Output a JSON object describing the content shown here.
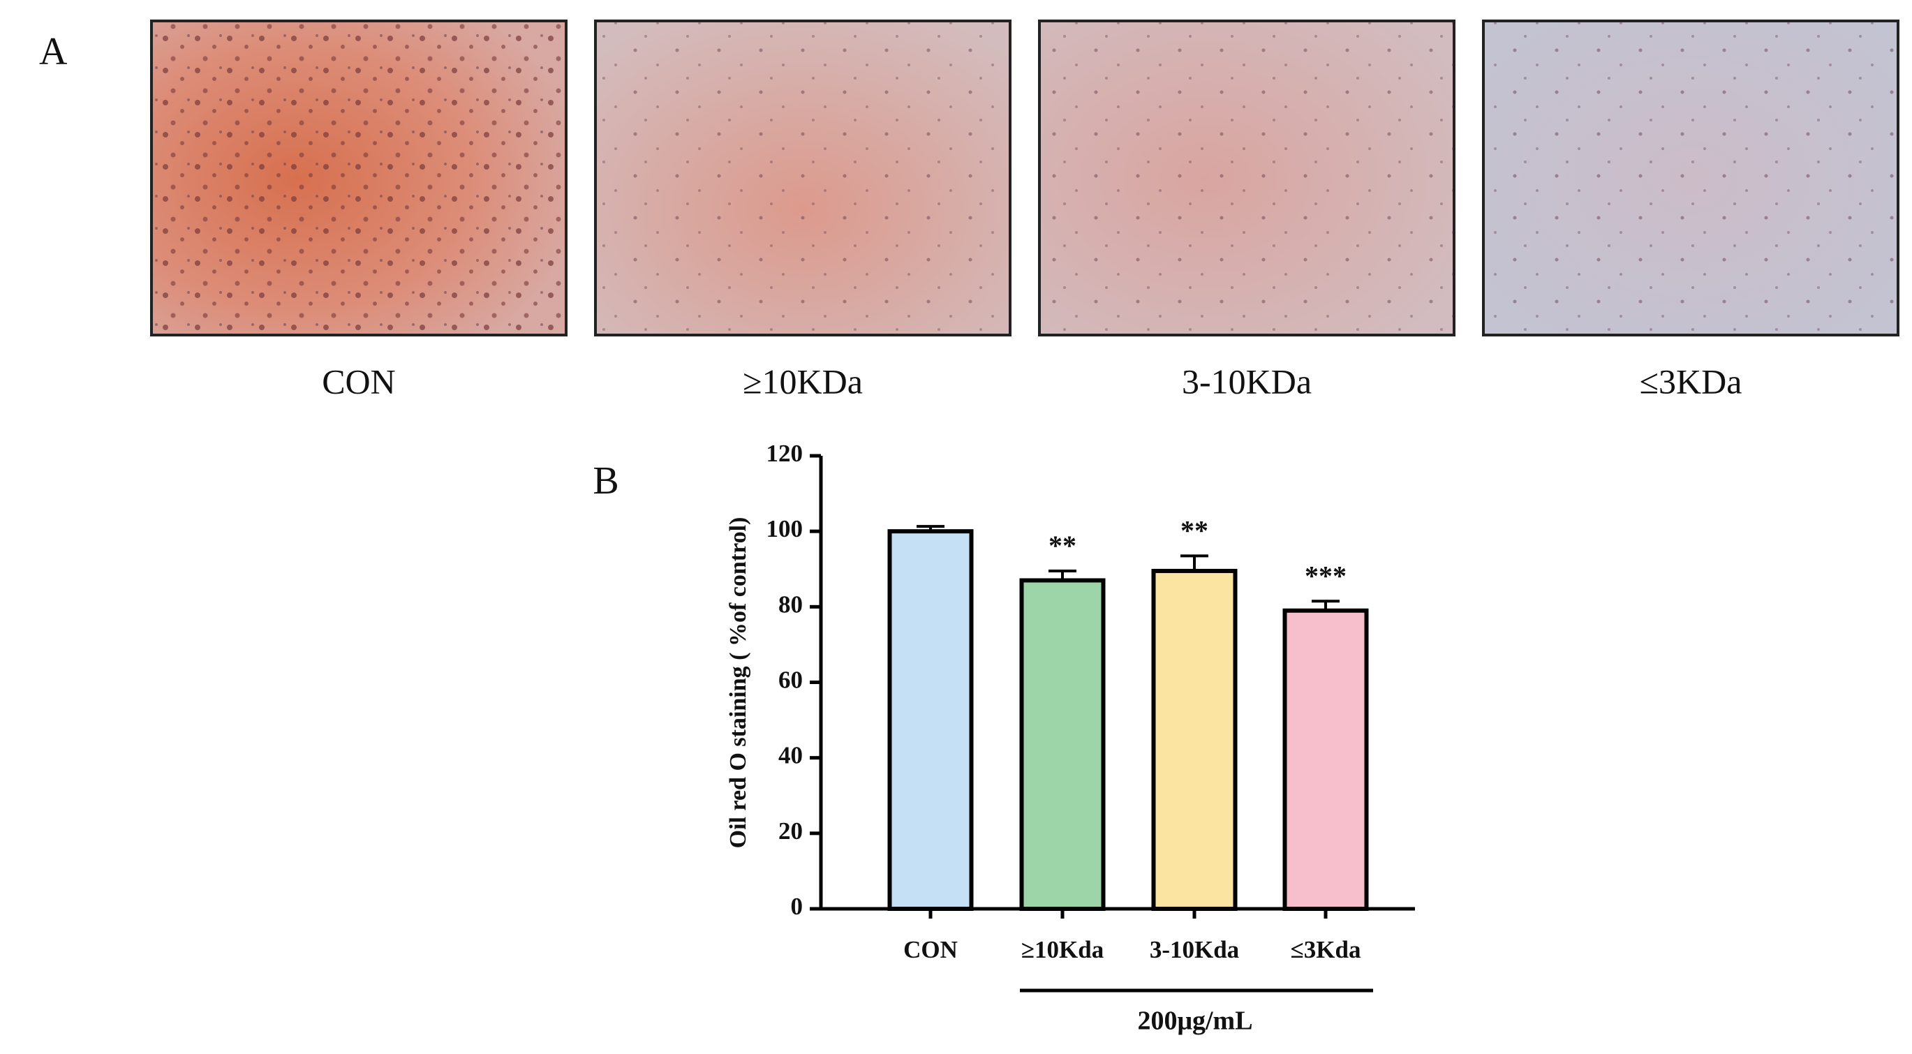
{
  "panel_a": {
    "label": "A",
    "images": [
      {
        "label": "CON"
      },
      {
        "label": "≥10KDa"
      },
      {
        "label": "3-10KDa"
      },
      {
        "label": "≤3KDa"
      }
    ]
  },
  "chart_data": {
    "type": "bar",
    "panel_label": "B",
    "ylabel": "Oil red O staining ( %of control)",
    "categories": [
      "CON",
      "≥10Kda",
      "3-10Kda",
      "≤3Kda"
    ],
    "values": [
      100,
      87,
      89.5,
      79
    ],
    "errors": [
      1.3,
      2.5,
      4,
      2.5
    ],
    "significance": [
      null,
      "**",
      "**",
      "***"
    ],
    "colors": [
      "#c5dff5",
      "#9dd4a8",
      "#fbe3a1",
      "#f7bfcb"
    ],
    "group_label": "200μg/mL",
    "ylim": [
      0,
      120
    ],
    "yticks": [
      0,
      20,
      40,
      60,
      80,
      100,
      120
    ]
  }
}
